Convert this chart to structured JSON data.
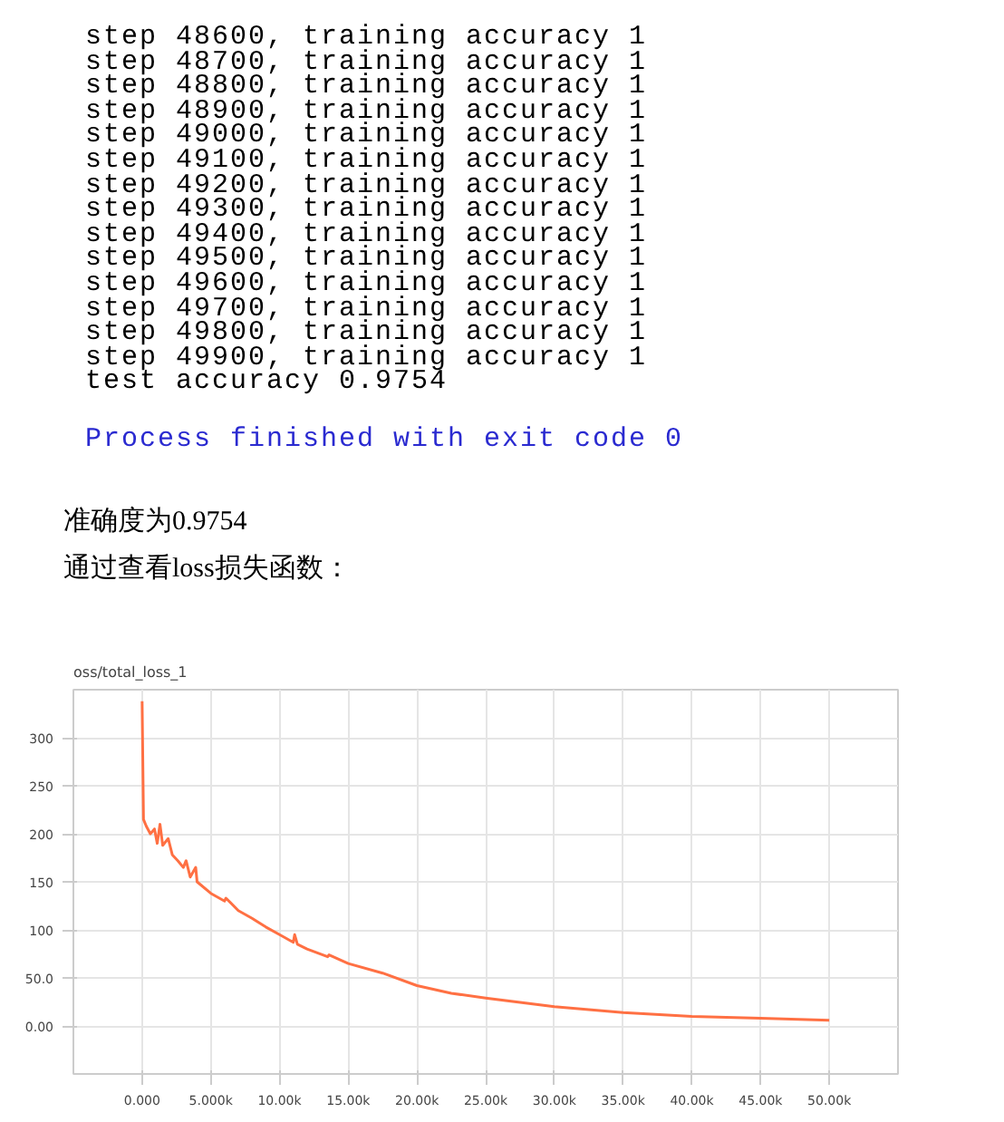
{
  "chart_data": {
    "type": "line",
    "title": "oss/total_loss_1",
    "annotations": [
      "step 48600, training accuracy 1",
      "step 48700, training accuracy 1",
      "step 48800, training accuracy 1",
      "step 48900, training accuracy 1",
      "step 49000, training accuracy 1",
      "step 49100, training accuracy 1",
      "step 49200, training accuracy 1",
      "step 49300, training accuracy 1",
      "step 49400, training accuracy 1",
      "step 49500, training accuracy 1",
      "step 49600, training accuracy 1",
      "step 49700, training accuracy 1",
      "step 49800, training accuracy 1",
      "step 49900, training accuracy 1",
      "test accuracy 0.9754",
      "Process finished with exit code 0",
      "准确度为0.9754",
      "通过查看loss损失函数："
    ],
    "x": [
      0,
      100,
      300,
      600,
      900,
      1100,
      1300,
      1500,
      1900,
      2200,
      2600,
      3000,
      3200,
      3500,
      3900,
      4000,
      5000,
      6000,
      6100,
      7000,
      8000,
      9000,
      10000,
      11000,
      11100,
      11300,
      12000,
      13500,
      13600,
      15000,
      17500,
      20000,
      22500,
      25000,
      30000,
      35000,
      40000,
      45000,
      50000
    ],
    "series": [
      {
        "color": "#ff7043",
        "values": [
          338,
          215,
          208,
          200,
          205,
          190,
          210,
          188,
          195,
          178,
          172,
          165,
          172,
          155,
          165,
          150,
          138,
          130,
          133,
          120,
          112,
          103,
          95,
          87,
          95,
          85,
          80,
          72,
          74,
          65,
          55,
          42,
          34,
          29,
          20,
          14,
          10,
          8,
          6
        ]
      }
    ],
    "xlim": [
      -5000,
      55000
    ],
    "ylim": [
      -50,
      350
    ],
    "xticks": [
      {
        "value": 0,
        "label": "0.000"
      },
      {
        "value": 5000,
        "label": "5.000k"
      },
      {
        "value": 10000,
        "label": "10.00k"
      },
      {
        "value": 15000,
        "label": "15.00k"
      },
      {
        "value": 20000,
        "label": "20.00k"
      },
      {
        "value": 25000,
        "label": "25.00k"
      },
      {
        "value": 30000,
        "label": "30.00k"
      },
      {
        "value": 35000,
        "label": "35.00k"
      },
      {
        "value": 40000,
        "label": "40.00k"
      },
      {
        "value": 45000,
        "label": "45.00k"
      },
      {
        "value": 50000,
        "label": "50.00k"
      }
    ],
    "yticks": [
      {
        "value": 0,
        "label": "0.00"
      },
      {
        "value": 50,
        "label": "50.0"
      },
      100,
      150,
      200,
      250,
      300
    ],
    "grid": true
  }
}
